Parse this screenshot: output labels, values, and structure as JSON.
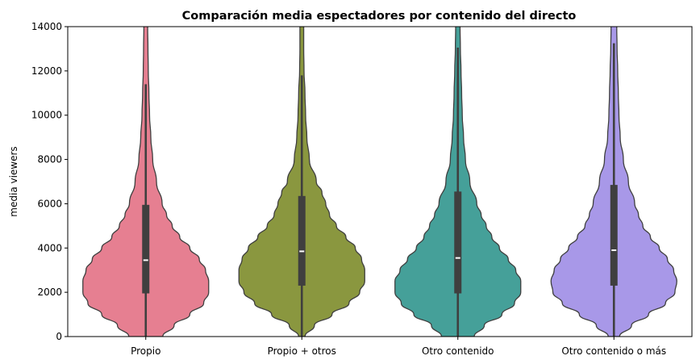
{
  "chart_data": {
    "type": "violin",
    "title": "Comparación media espectadores por contenido del directo",
    "xlabel": "",
    "ylabel": "media viewers",
    "ylim": [
      0,
      14000
    ],
    "yticks": [
      "0",
      "2000",
      "4000",
      "6000",
      "8000",
      "10000",
      "12000",
      "14000"
    ],
    "categories": [
      "Propio",
      "Propio + otros",
      "Otro contenido",
      "Otro contenido o más"
    ],
    "colors": [
      "#e67f91",
      "#8a973f",
      "#45a099",
      "#a898e8"
    ],
    "grid": false,
    "series": [
      {
        "name": "Propio",
        "median": 3450,
        "q1": 1950,
        "q3": 5950,
        "whisker_low": 0,
        "whisker_high": 11400,
        "density": [
          [
            0,
            0.27
          ],
          [
            500,
            0.45
          ],
          [
            1000,
            0.7
          ],
          [
            1500,
            0.92
          ],
          [
            2000,
            1.0
          ],
          [
            2500,
            1.0
          ],
          [
            3000,
            0.95
          ],
          [
            3500,
            0.85
          ],
          [
            4000,
            0.7
          ],
          [
            4500,
            0.54
          ],
          [
            5000,
            0.42
          ],
          [
            5500,
            0.33
          ],
          [
            6000,
            0.26
          ],
          [
            7000,
            0.17
          ],
          [
            8000,
            0.11
          ],
          [
            9000,
            0.08
          ],
          [
            10000,
            0.06
          ],
          [
            11000,
            0.05
          ],
          [
            12000,
            0.04
          ],
          [
            13000,
            0.035
          ],
          [
            14000,
            0.03
          ]
        ]
      },
      {
        "name": "Propio + otros",
        "median": 3850,
        "q1": 2300,
        "q3": 6350,
        "whisker_low": 0,
        "whisker_high": 11800,
        "density": [
          [
            0,
            0.05
          ],
          [
            500,
            0.2
          ],
          [
            1000,
            0.48
          ],
          [
            1500,
            0.75
          ],
          [
            2000,
            0.92
          ],
          [
            2500,
            1.0
          ],
          [
            3000,
            1.0
          ],
          [
            3500,
            0.95
          ],
          [
            4000,
            0.85
          ],
          [
            4500,
            0.7
          ],
          [
            5000,
            0.55
          ],
          [
            5500,
            0.44
          ],
          [
            6000,
            0.38
          ],
          [
            6500,
            0.32
          ],
          [
            7000,
            0.23
          ],
          [
            8000,
            0.12
          ],
          [
            9000,
            0.08
          ],
          [
            10000,
            0.06
          ],
          [
            11000,
            0.05
          ],
          [
            12000,
            0.035
          ],
          [
            13000,
            0.03
          ],
          [
            14000,
            0.03
          ]
        ]
      },
      {
        "name": "Otro contenido",
        "median": 3550,
        "q1": 1950,
        "q3": 6550,
        "whisker_low": 0,
        "whisker_high": 13050,
        "density": [
          [
            0,
            0.26
          ],
          [
            500,
            0.42
          ],
          [
            1000,
            0.7
          ],
          [
            1500,
            0.9
          ],
          [
            2000,
            1.0
          ],
          [
            2500,
            1.0
          ],
          [
            3000,
            0.92
          ],
          [
            3500,
            0.8
          ],
          [
            4000,
            0.66
          ],
          [
            4500,
            0.54
          ],
          [
            5000,
            0.45
          ],
          [
            5500,
            0.37
          ],
          [
            6000,
            0.3
          ],
          [
            7000,
            0.19
          ],
          [
            8000,
            0.12
          ],
          [
            9000,
            0.09
          ],
          [
            10000,
            0.07
          ],
          [
            11000,
            0.06
          ],
          [
            12000,
            0.05
          ],
          [
            13000,
            0.04
          ],
          [
            14000,
            0.035
          ]
        ]
      },
      {
        "name": "Otro contenido o más",
        "median": 3900,
        "q1": 2300,
        "q3": 6850,
        "whisker_low": 0,
        "whisker_high": 13250,
        "density": [
          [
            0,
            0.09
          ],
          [
            500,
            0.28
          ],
          [
            1000,
            0.55
          ],
          [
            1500,
            0.82
          ],
          [
            2000,
            0.97
          ],
          [
            2500,
            1.0
          ],
          [
            3000,
            0.95
          ],
          [
            3500,
            0.85
          ],
          [
            4000,
            0.72
          ],
          [
            4500,
            0.58
          ],
          [
            5000,
            0.46
          ],
          [
            5500,
            0.39
          ],
          [
            6000,
            0.33
          ],
          [
            7000,
            0.23
          ],
          [
            8000,
            0.15
          ],
          [
            9000,
            0.1
          ],
          [
            10000,
            0.08
          ],
          [
            11000,
            0.07
          ],
          [
            12000,
            0.06
          ],
          [
            13000,
            0.05
          ],
          [
            14000,
            0.045
          ]
        ]
      }
    ]
  }
}
